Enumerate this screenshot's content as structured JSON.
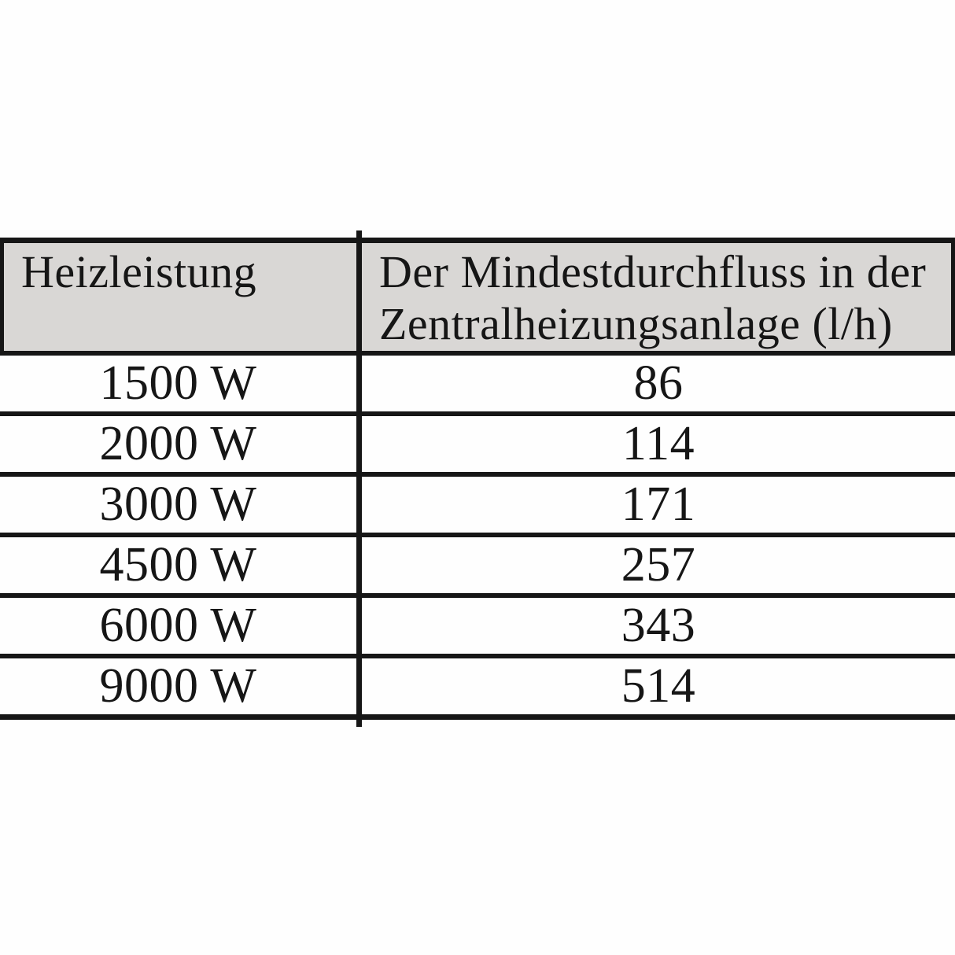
{
  "table": {
    "header": {
      "col1": "Heizleistung",
      "col2": "Der Mindestdurchfluss in der Zentralheizungsanlage (l/h)"
    },
    "rows": [
      {
        "heizleistung": "1500 W",
        "mindestdurchfluss": "86"
      },
      {
        "heizleistung": "2000 W",
        "mindestdurchfluss": "114"
      },
      {
        "heizleistung": "3000 W",
        "mindestdurchfluss": "171"
      },
      {
        "heizleistung": "4500 W",
        "mindestdurchfluss": "257"
      },
      {
        "heizleistung": "6000 W",
        "mindestdurchfluss": "343"
      },
      {
        "heizleistung": "9000 W",
        "mindestdurchfluss": "514"
      }
    ]
  },
  "colors": {
    "page_bg": "#fefefe",
    "header_bg": "#d9d7d5",
    "border": "#161616",
    "text": "#161616"
  }
}
